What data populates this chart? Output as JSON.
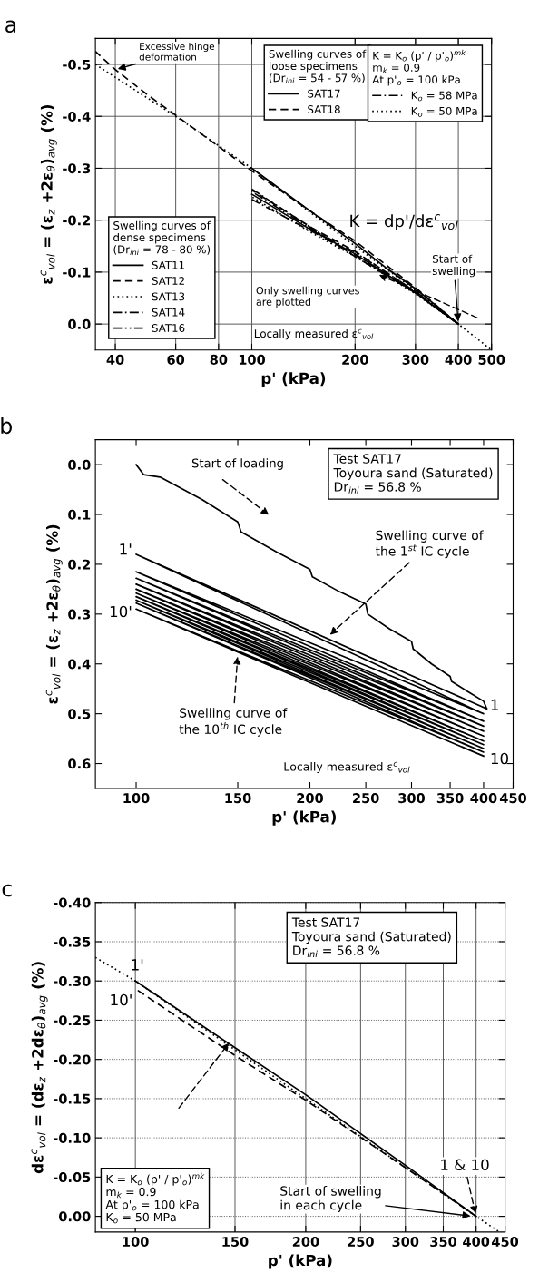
{
  "chart_data": [
    {
      "type": "line",
      "title": "a",
      "xlabel": "p' (kPa)",
      "ylabel": "ε$^{c}$$_{vol}$ = (ε$_{z}$ +2ε$_{θ}$)$_{avg}$ (%)",
      "log": "x",
      "xlim": [
        35,
        500
      ],
      "xticks": [
        40,
        60,
        80,
        100,
        200,
        300,
        400,
        500
      ],
      "ylim": [
        0.05,
        -0.55
      ],
      "yticks": [
        {
          "value": -0.5,
          "label": "-0.5"
        },
        {
          "value": -0.4,
          "label": "-0.4"
        },
        {
          "value": -0.3,
          "label": "-0.3"
        },
        {
          "value": -0.2,
          "label": "-0.2"
        },
        {
          "value": -0.1,
          "label": "-0.1"
        },
        {
          "value": 0,
          "label": "0.0"
        }
      ],
      "grid": true,
      "marker": "none",
      "legend": [
        "upper center",
        "lower left",
        "upper right"
      ],
      "legend_title": [
        "Swelling curves of\nloose specimens\n(Dr$_{ini}$ = 54 - 57 %)",
        "Swelling curves of\ndense specimens\n(Dr$_{ini}$ = 78 - 80 %)",
        "K = K$_{o}$ (p' / p'$_{o}$)$^{mk}$\nm$_{k}$ = 0.9\nAt p'$_{o}$ = 100 kPa"
      ],
      "series": [
        {
          "name": "SAT17",
          "color": "#000000",
          "line_style": "solid",
          "x": [
            400,
            300,
            250,
            200,
            150,
            100
          ],
          "values": [
            0,
            -0.068,
            -0.105,
            -0.155,
            -0.215,
            -0.3
          ]
        },
        {
          "name": "SAT18",
          "color": "#000000",
          "line_style": "dashed",
          "x": [
            400,
            300,
            200,
            150,
            100,
            70,
            50,
            40,
            35
          ],
          "values": [
            0,
            -0.07,
            -0.16,
            -0.215,
            -0.295,
            -0.37,
            -0.44,
            -0.49,
            -0.525
          ]
        },
        {
          "name": "SAT11",
          "color": "#000000",
          "line_style": "solid",
          "x": [
            400,
            300,
            200,
            150,
            100
          ],
          "values": [
            0,
            -0.06,
            -0.135,
            -0.18,
            -0.25
          ]
        },
        {
          "name": "SAT12",
          "color": "#000000",
          "line_style": "dashed",
          "x": [
            400,
            300,
            200,
            150,
            100
          ],
          "values": [
            0,
            -0.062,
            -0.14,
            -0.185,
            -0.258
          ]
        },
        {
          "name": "SAT13",
          "color": "#000000",
          "line_style": "dotted",
          "x": [
            400,
            300,
            200,
            150,
            100
          ],
          "values": [
            0,
            -0.058,
            -0.13,
            -0.175,
            -0.245
          ]
        },
        {
          "name": "SAT14",
          "color": "#000000",
          "line_style": "dashdot",
          "x": [
            400,
            300,
            200,
            150,
            100
          ],
          "values": [
            0,
            -0.06,
            -0.133,
            -0.178,
            -0.24
          ]
        },
        {
          "name": "SAT16",
          "color": "#000000",
          "line_style": "dashdotdot",
          "x": [
            400,
            300,
            200,
            150,
            100
          ],
          "values": [
            0,
            -0.063,
            -0.138,
            -0.182,
            -0.255
          ]
        },
        {
          "name": "K$_{o}$ = 58 MPa",
          "color": "#000000",
          "line_style": "dashdot",
          "x": [
            100,
            200,
            300,
            400
          ],
          "values": [
            -0.26,
            -0.13,
            -0.06,
            0
          ]
        },
        {
          "name": "K$_{o}$ = 50 MPa",
          "color": "#000000",
          "line_style": "dotted",
          "x": [
            35,
            60,
            100,
            200,
            300,
            400,
            500
          ],
          "values": [
            -0.5,
            -0.4,
            -0.3,
            -0.15,
            -0.065,
            0,
            0.05
          ]
        }
      ],
      "annotations": [
        {
          "text": "Excessive hinge\ndeformation",
          "x": 40,
          "y": -0.49
        },
        "Only swelling curves\nare plotted",
        {
          "text": "Start of\nswelling",
          "x": 400,
          "y": 0
        },
        "Locally measured ε$^{c}$$_{vol}$",
        "K = dp'/dε$^{c}$$_{vol}$"
      ]
    },
    {
      "type": "line",
      "title": "b",
      "xlabel": "p' (kPa)",
      "ylabel": "ε$^{c}$$_{vol}$ = (ε$_{z}$ +2ε$_{θ}$)$_{avg}$ (%)",
      "log": "x",
      "xlim": [
        85,
        450
      ],
      "xticks": [
        100,
        150,
        200,
        250,
        300,
        350,
        400,
        450
      ],
      "ylim": [
        0.65,
        -0.05
      ],
      "yticks": [
        {
          "value": 0,
          "label": "0.0"
        },
        0.1,
        0.2,
        0.3,
        0.4,
        0.5,
        0.6
      ],
      "marker": "none",
      "series": [
        {
          "color": "#000000",
          "line_style": "solid",
          "x": [
            100,
            103,
            110,
            130,
            150,
            152,
            175,
            200,
            202,
            225,
            250,
            252,
            275,
            300,
            302,
            325,
            350,
            352,
            375,
            400,
            405
          ],
          "values": [
            0,
            0.02,
            0.025,
            0.07,
            0.115,
            0.135,
            0.175,
            0.21,
            0.225,
            0.255,
            0.28,
            0.3,
            0.33,
            0.355,
            0.37,
            0.4,
            0.425,
            0.435,
            0.455,
            0.475,
            0.49
          ]
        },
        {
          "color": "#000000",
          "line_style": "solid",
          "x": [
            405,
            100,
            400,
            100,
            400,
            100,
            400,
            100,
            400,
            100,
            400,
            100,
            400,
            100,
            400,
            100,
            400,
            100,
            400,
            100,
            400
          ],
          "values": [
            0.49,
            0.18,
            0.5,
            0.215,
            0.515,
            0.228,
            0.525,
            0.24,
            0.535,
            0.25,
            0.545,
            0.258,
            0.555,
            0.265,
            0.562,
            0.272,
            0.57,
            0.278,
            0.577,
            0.29,
            0.585
          ]
        }
      ],
      "annotations": [
        "Start of loading",
        "Test SAT17\nToyoura sand (Saturated)\nDr$_{ini}$ = 56.8 %",
        {
          "text": "1'",
          "x": 100,
          "y": 0.18
        },
        {
          "text": "10'",
          "x": 100,
          "y": 0.29
        },
        {
          "text": "1",
          "x": 400,
          "y": 0.485
        },
        {
          "text": "10",
          "x": 400,
          "y": 0.585
        },
        {
          "text": "Swelling curve of\nthe 1$^{st}$ IC cycle",
          "x": 215,
          "y": 0.345
        },
        {
          "text": "Swelling curve of\nthe 10$^{th}$ IC cycle",
          "x": 150,
          "y": 0.38
        },
        "Locally measured ε$^{c}$$_{vol}$"
      ]
    },
    {
      "type": "line",
      "title": "c",
      "xlabel": "p' (kPa)",
      "ylabel": "dε$^{c}$$_{vol}$ = (dε$_{z}$ +2dε$_{θ}$)$_{avg}$ (%)",
      "log": "x",
      "xlim": [
        85,
        450
      ],
      "xticks": [
        100,
        150,
        200,
        250,
        300,
        350,
        400,
        450
      ],
      "ylim": [
        0.02,
        -0.4
      ],
      "yticks": [
        {
          "value": -0.4,
          "label": "-0.40"
        },
        {
          "value": -0.35,
          "label": "-0.35"
        },
        {
          "value": -0.3,
          "label": "-0.30"
        },
        {
          "value": -0.25,
          "label": "-0.25"
        },
        {
          "value": -0.2,
          "label": "-0.20"
        },
        {
          "value": -0.15,
          "label": "-0.15"
        },
        {
          "value": -0.1,
          "label": "-0.10"
        },
        {
          "value": -0.05,
          "label": "-0.05"
        },
        {
          "value": 0,
          "label": "0.00"
        }
      ],
      "grid": true,
      "marker": "none",
      "series": [
        {
          "color": "#000000",
          "line_style": "solid",
          "x": [
            400,
            300,
            200,
            150,
            100
          ],
          "values": [
            0,
            -0.065,
            -0.155,
            -0.215,
            -0.3
          ]
        },
        {
          "color": "#000000",
          "line_style": "dashed",
          "x": [
            400,
            300,
            200,
            150,
            100
          ],
          "values": [
            0,
            -0.062,
            -0.148,
            -0.205,
            -0.29
          ]
        },
        {
          "color": "#000000",
          "line_style": "dotted",
          "x": [
            85,
            100,
            200,
            400,
            440
          ],
          "values": [
            -0.33,
            -0.3,
            -0.15,
            0,
            0.02
          ]
        }
      ],
      "annotations": [
        "Test SAT17\nToyoura sand (Saturated)\nDr$_{ini}$ = 56.8 %",
        {
          "text": "1'",
          "x": 100,
          "y": -0.3
        },
        {
          "text": "10'",
          "x": 100,
          "y": -0.29
        },
        {
          "text": "1 & 10",
          "x": 400,
          "y": 0
        },
        {
          "text": "Start of swelling\nin each cycle",
          "x": 395,
          "y": 0
        },
        "K = K$_{o}$ (p' / p'$_{o}$)$^{mk}$\nm$_{k}$ = 0.9\nAt p'$_{o}$ = 100 kPa\nK$_{o}$ = 50 MPa"
      ]
    }
  ]
}
